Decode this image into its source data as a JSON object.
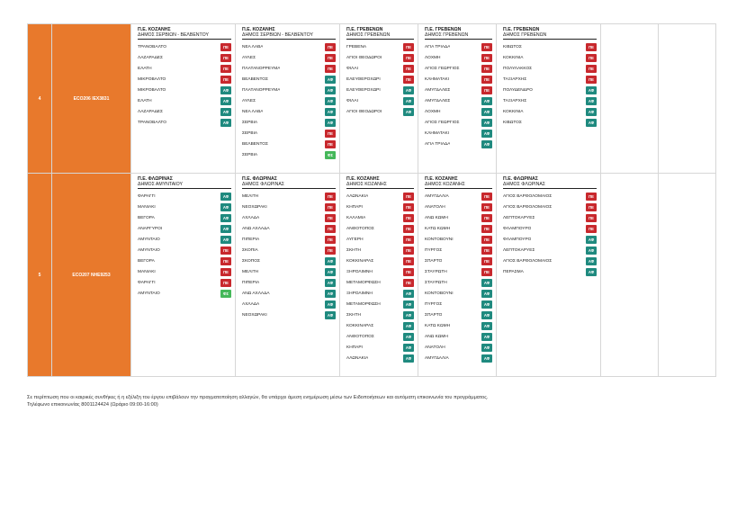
{
  "colors": {
    "band": "#e8792c",
    "pe": "#c8282d",
    "af": "#1f8a7f",
    "fs": "#45b85a"
  },
  "rows": [
    {
      "num": "4",
      "code": "ECO206  IEX3831",
      "routes": [
        {
          "head1": "Π.Ε. ΚΟΖΑΝΗΣ",
          "head2": "ΔΗΜΟΣ ΣΕΡΒΙΩΝ - ΒΕΛΒΕΝΤΟΥ",
          "stops": [
            {
              "name": "ΤΡΑΝΟΒΑΛΤΟ",
              "badge": "ΠΕ"
            },
            {
              "name": "ΛΑΖΑΡΑΔΕΣ",
              "badge": "ΠΕ"
            },
            {
              "name": "ΕΛΑΤΗ",
              "badge": "ΠΕ"
            },
            {
              "name": "ΜΙΚΡΟΒΑΛΤΟ",
              "badge": "ΠΕ"
            },
            {
              "name": "ΜΙΚΡΟΒΑΛΤΟ",
              "badge": "ΑΦ"
            },
            {
              "name": "ΕΛΑΤΗ",
              "badge": "ΑΦ"
            },
            {
              "name": "ΛΑΖΑΡΑΔΕΣ",
              "badge": "ΑΦ"
            },
            {
              "name": "ΤΡΑΝΟΒΑΛΤΟ",
              "badge": "ΑΦ"
            }
          ]
        },
        {
          "head1": "Π.Ε. ΚΟΖΑΝΗΣ",
          "head2": "ΔΗΜΟΣ ΣΕΡΒΙΩΝ - ΒΕΛΒΕΝΤΟΥ",
          "stops": [
            {
              "name": "ΝΕΑ ΛΑΒΑ",
              "badge": "ΠΕ"
            },
            {
              "name": "ΑΥΛΕΣ",
              "badge": "ΠΕ"
            },
            {
              "name": "ΠΛΑΤΑΝΟΡΡΕΥΜΑ",
              "badge": "ΠΕ"
            },
            {
              "name": "ΒΕΛΒΕΝΤΟΣ",
              "badge": "ΑΦ"
            },
            {
              "name": "ΠΛΑΤΑΝΟΡΡΕΥΜΑ",
              "badge": "ΑΦ"
            },
            {
              "name": "ΑΥΛΕΣ",
              "badge": "ΑΦ"
            },
            {
              "name": "ΝΕΑ ΛΑΒΑ",
              "badge": "ΑΦ"
            },
            {
              "name": "ΣΕΡΒΙΑ",
              "badge": "ΑΦ"
            },
            {
              "name": "ΣΕΡΒΙΑ",
              "badge": "ΠΕ"
            },
            {
              "name": "ΒΕΛΒΕΝΤΟΣ",
              "badge": "ΠΕ"
            },
            {
              "name": "ΣΕΡΒΙΑ",
              "badge": "ΦΣ"
            }
          ]
        },
        {
          "head1": "Π.Ε. ΓΡΕΒΕΝΩΝ",
          "head2": "ΔΗΜΟΣ ΓΡΕΒΕΝΩΝ",
          "stops": [
            {
              "name": "ΓΡΕΒΕΝΑ",
              "badge": "ΠΕ"
            },
            {
              "name": "ΑΓΙΟΙ ΘΕΟΔΩΡΟΙ",
              "badge": "ΠΕ"
            },
            {
              "name": "ΦΙΛΑΙ",
              "badge": "ΠΕ"
            },
            {
              "name": "ΕΛΕΥΘΕΡΟΧΩΡΙ",
              "badge": "ΠΕ"
            },
            {
              "name": "ΕΛΕΥΘΕΡΟΧΩΡΙ",
              "badge": "ΑΦ"
            },
            {
              "name": "ΦΙΛΑΙ",
              "badge": "ΑΦ"
            },
            {
              "name": "ΑΓΙΟΙ ΘΕΟΔΩΡΟΙ",
              "badge": "ΑΦ"
            }
          ]
        },
        {
          "head1": "Π.Ε. ΓΡΕΒΕΝΩΝ",
          "head2": "ΔΗΜΟΣ ΓΡΕΒΕΝΩΝ",
          "stops": [
            {
              "name": "ΑΓΙΑ ΤΡΙΑΔΑ",
              "badge": "ΠΕ"
            },
            {
              "name": "ΛΟΧΜΗ",
              "badge": "ΠΕ"
            },
            {
              "name": "ΑΓΙΟΣ ΓΕΩΡΓΙΟΣ",
              "badge": "ΠΕ"
            },
            {
              "name": "ΚΛΗΜΑΤΑΚΙ",
              "badge": "ΠΕ"
            },
            {
              "name": "ΑΜΥΓΔΑΛΕΣ",
              "badge": "ΠΕ"
            },
            {
              "name": "ΑΜΥΓΔΑΛΕΣ",
              "badge": "ΑΦ"
            },
            {
              "name": "ΛΟΧΜΗ",
              "badge": "ΑΦ"
            },
            {
              "name": "ΑΓΙΟΣ ΓΕΩΡΓΙΟΣ",
              "badge": "ΑΦ"
            },
            {
              "name": "ΚΛΗΜΑΤΑΚΙ",
              "badge": "ΑΦ"
            },
            {
              "name": "ΑΓΙΑ ΤΡΙΑΔΑ",
              "badge": "ΑΦ"
            }
          ]
        },
        {
          "head1": "Π.Ε. ΓΡΕΒΕΝΩΝ",
          "head2": "ΔΗΜΟΣ ΓΡΕΒΕΝΩΝ",
          "stops": [
            {
              "name": "ΚΙΒΩΤΟΣ",
              "badge": "ΠΕ"
            },
            {
              "name": "ΚΟΚΚΙΝΙΑ",
              "badge": "ΠΕ"
            },
            {
              "name": "ΠΟΛΥΛΑΚΚΟΣ",
              "badge": "ΠΕ"
            },
            {
              "name": "ΤΑΞΙΑΡΧΗΣ",
              "badge": "ΠΕ"
            },
            {
              "name": "ΠΟΛΥΔΕΝΔΡΟ",
              "badge": "ΑΦ"
            },
            {
              "name": "ΤΑΞΙΑΡΧΗΣ",
              "badge": "ΑΦ"
            },
            {
              "name": "ΚΟΚΚΙΝΙΑ",
              "badge": "ΑΦ"
            },
            {
              "name": "ΚΙΒΩΤΟΣ",
              "badge": "ΑΦ"
            }
          ]
        }
      ]
    },
    {
      "num": "5",
      "code": "ECO207  ΝΗΕ9253",
      "routes": [
        {
          "head1": "Π.Ε. ΦΛΩΡΙΝΑΣ",
          "head2": "ΔΗΜΟΣ ΑΜΥΝΤΑΙΟΥ",
          "stops": [
            {
              "name": "ΦΑΡΑΓΓΙ",
              "badge": "ΑΦ"
            },
            {
              "name": "ΜΑΝΙΑΚΙ",
              "badge": "ΑΦ"
            },
            {
              "name": "ΒΕΓΟΡΑ",
              "badge": "ΑΦ"
            },
            {
              "name": "ΑΝΑΡΓΥΡΟΙ",
              "badge": "ΑΦ"
            },
            {
              "name": "ΑΜΥΝΤΑΙΟ",
              "badge": "ΑΦ"
            },
            {
              "name": "ΑΜΥΝΤΑΙΟ",
              "badge": "ΠΕ"
            },
            {
              "name": "ΒΕΓΟΡΑ",
              "badge": "ΠΕ"
            },
            {
              "name": "ΜΑΝΙΑΚΙ",
              "badge": "ΠΕ"
            },
            {
              "name": "ΦΑΡΑΓΓΙ",
              "badge": "ΠΕ"
            },
            {
              "name": "ΑΜΥΝΤΑΙΟ",
              "badge": "ΦΣ"
            }
          ]
        },
        {
          "head1": "Π.Ε. ΦΛΩΡΙΝΑΣ",
          "head2": "ΔΗΜΟΣ ΦΛΩΡΙΝΑΣ",
          "stops": [
            {
              "name": "ΜΕΛΙΤΗ",
              "badge": "ΠΕ"
            },
            {
              "name": "ΝΕΟΧΩΡΑΚΙ",
              "badge": "ΠΕ"
            },
            {
              "name": "ΑΧΛΑΔΑ",
              "badge": "ΠΕ"
            },
            {
              "name": "ΑΝΩ ΑΧΛΑΔΑ",
              "badge": "ΠΕ"
            },
            {
              "name": "ΠΙΠΕΡΙΑ",
              "badge": "ΠΕ"
            },
            {
              "name": "ΣΚΟΠΙΑ",
              "badge": "ΠΕ"
            },
            {
              "name": "ΣΚΟΠΟΣ",
              "badge": "ΑΦ"
            },
            {
              "name": "ΜΕΛΙΤΗ",
              "badge": "ΑΦ"
            },
            {
              "name": "ΠΙΠΕΡΙΑ",
              "badge": "ΑΦ"
            },
            {
              "name": "ΑΝΩ ΑΧΛΑΔΑ",
              "badge": "ΑΦ"
            },
            {
              "name": "ΑΧΛΑΔΑ",
              "badge": "ΑΦ"
            },
            {
              "name": "ΝΕΟΧΩΡΑΚΙ",
              "badge": "ΑΦ"
            }
          ]
        },
        {
          "head1": "Π.Ε. ΚΟΖΑΝΗΣ",
          "head2": "ΔΗΜΟΣ ΚΟΖΑΝΗΣ",
          "stops": [
            {
              "name": "ΑΛΩΝΑΚΙΑ",
              "badge": "ΠΕ"
            },
            {
              "name": "ΚΗΠΑΡΙ",
              "badge": "ΠΕ"
            },
            {
              "name": "ΚΑΛΑΜΙΑ",
              "badge": "ΠΕ"
            },
            {
              "name": "ΑΝΘΟΤΟΠΟΣ",
              "badge": "ΠΕ"
            },
            {
              "name": "ΑΥΓΕΡΗ",
              "badge": "ΠΕ"
            },
            {
              "name": "ΣΚΗΤΗ",
              "badge": "ΠΕ"
            },
            {
              "name": "ΚΟΚΚΙΝΑΡΑΣ",
              "badge": "ΠΕ"
            },
            {
              "name": "ΞΗΡΟΛΙΜΝΗ",
              "badge": "ΠΕ"
            },
            {
              "name": "ΜΕΤΑΜΟΡΦΩΣΗ",
              "badge": "ΠΕ"
            },
            {
              "name": "ΞΗΡΟΛΙΜΝΗ",
              "badge": "ΑΦ"
            },
            {
              "name": "ΜΕΤΑΜΟΡΦΩΣΗ",
              "badge": "ΑΦ"
            },
            {
              "name": "ΣΚΗΤΗ",
              "badge": "ΑΦ"
            },
            {
              "name": "ΚΟΚΚΙΝΑΡΑΣ",
              "badge": "ΑΦ"
            },
            {
              "name": "ΑΝΘΟΤΟΠΟΣ",
              "badge": "ΑΦ"
            },
            {
              "name": "ΚΗΠΑΡΙ",
              "badge": "ΑΦ"
            },
            {
              "name": "ΑΛΩΝΑΚΙΑ",
              "badge": "ΑΦ"
            }
          ]
        },
        {
          "head1": "Π.Ε. ΚΟΖΑΝΗΣ",
          "head2": "ΔΗΜΟΣ ΚΟΖΑΝΗΣ",
          "stops": [
            {
              "name": "ΑΜΥΓΔΑΛΙΑ",
              "badge": "ΠΕ"
            },
            {
              "name": "ΑΝΑΤΟΛΗ",
              "badge": "ΠΕ"
            },
            {
              "name": "ΑΝΩ ΚΩΜΗ",
              "badge": "ΠΕ"
            },
            {
              "name": "ΚΑΤΩ ΚΩΜΗ",
              "badge": "ΠΕ"
            },
            {
              "name": "ΚΟΝΤΟΒΟΥΝΙ",
              "badge": "ΠΕ"
            },
            {
              "name": "ΠΥΡΓΟΣ",
              "badge": "ΠΕ"
            },
            {
              "name": "ΣΠΑΡΤΟ",
              "badge": "ΠΕ"
            },
            {
              "name": "ΣΤΑΥΡΩΤΗ",
              "badge": "ΠΕ"
            },
            {
              "name": "ΣΤΑΥΡΩΤΗ",
              "badge": "ΑΦ"
            },
            {
              "name": "ΚΟΝΤΟΒΟΥΝΙ",
              "badge": "ΑΦ"
            },
            {
              "name": "ΠΥΡΓΟΣ",
              "badge": "ΑΦ"
            },
            {
              "name": "ΣΠΑΡΤΟ",
              "badge": "ΑΦ"
            },
            {
              "name": "ΚΑΤΩ ΚΩΜΗ",
              "badge": "ΑΦ"
            },
            {
              "name": "ΑΝΩ ΚΩΜΗ",
              "badge": "ΑΦ"
            },
            {
              "name": "ΑΝΑΤΟΛΗ",
              "badge": "ΑΦ"
            },
            {
              "name": "ΑΜΥΓΔΑΛΙΑ",
              "badge": "ΑΦ"
            }
          ]
        },
        {
          "head1": "Π.Ε. ΦΛΩΡΙΝΑΣ",
          "head2": "ΔΗΜΟΣ ΦΛΩΡΙΝΑΣ",
          "stops": [
            {
              "name": "ΑΓΙΟΣ ΒΑΡΘΟΛΟΜΑΙΟΣ",
              "badge": "ΠΕ"
            },
            {
              "name": "ΑΓΙΟΣ ΒΑΡΘΟΛΟΜΑΙΟΣ",
              "badge": "ΠΕ"
            },
            {
              "name": "ΛΕΠΤΟΚΑΡΥΕΣ",
              "badge": "ΠΕ"
            },
            {
              "name": "ΦΛΑΜΠΟΥΡΟ",
              "badge": "ΠΕ"
            },
            {
              "name": "ΦΛΑΜΠΟΥΡΟ",
              "badge": "ΑΦ"
            },
            {
              "name": "ΛΕΠΤΟΚΑΡΥΕΣ",
              "badge": "ΑΦ"
            },
            {
              "name": "ΑΓΙΟΣ ΒΑΡΘΟΛΟΜΑΙΟΣ",
              "badge": "ΑΦ"
            },
            {
              "name": "ΠΕΡΑΣΜΑ",
              "badge": "ΑΦ"
            }
          ]
        }
      ]
    }
  ],
  "footer": {
    "line1": "Σε περίπτωση που οι καιρικές συνθήκες ή η εξέλιξη του έργου επιβάλουν την πραγματοποίηση αλλαγών, θα υπάρχει άμεση ενημέρωση μέσω των Ειδοποιήσεων και αυτόματη επικοινωνία του προγράμματος.",
    "line2": "Τηλέφωνο επικοινωνίας 8001124424 (Ωράριο 09:00-16:00)"
  }
}
